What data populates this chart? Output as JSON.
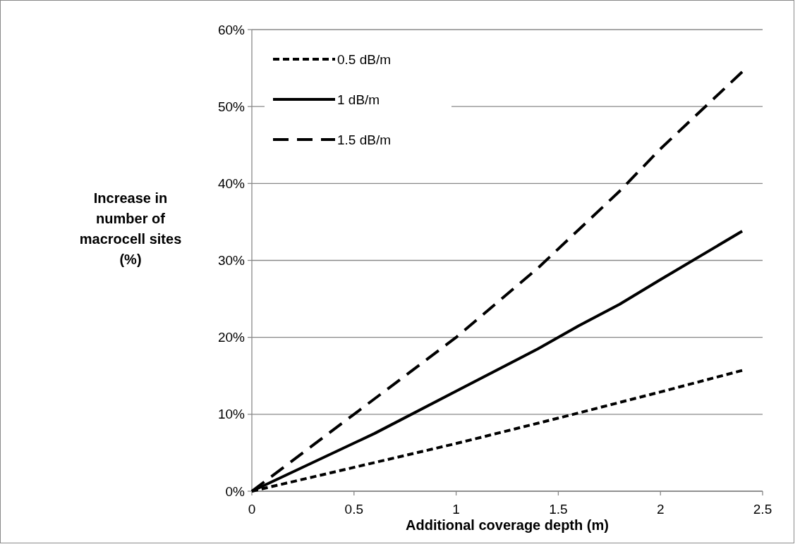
{
  "chart_data": {
    "type": "line",
    "xlabel": "Additional coverage depth (m)",
    "ylabel": "Increase in number of macrocell sites (%)",
    "xlim": [
      0,
      2.5
    ],
    "xticks": [
      0,
      0.5,
      1,
      1.5,
      2,
      2.5
    ],
    "ylim": [
      0,
      60
    ],
    "yticks": [
      {
        "value": 0,
        "label": "0%"
      },
      {
        "value": 10,
        "label": "10%"
      },
      {
        "value": 20,
        "label": "20%"
      },
      {
        "value": 30,
        "label": "30%"
      },
      {
        "value": 40,
        "label": "40%"
      },
      {
        "value": 50,
        "label": "50%"
      },
      {
        "value": 60,
        "label": "60%"
      }
    ],
    "grid": "y",
    "legend": "top left",
    "marker": "none",
    "series": [
      {
        "name": "0.5 dB/m",
        "color": "#000000",
        "line_style": "dotted",
        "x": [
          0,
          0.5,
          1,
          1.5,
          2,
          2.4
        ],
        "values": [
          0,
          3.1,
          6.2,
          9.5,
          12.9,
          15.7
        ]
      },
      {
        "name": "1 dB/m",
        "color": "#000000",
        "line_style": "solid",
        "x": [
          0,
          0.6,
          1,
          1.4,
          1.6,
          1.8,
          2,
          2.4
        ],
        "values": [
          0,
          7.5,
          13,
          18.5,
          21.5,
          24.3,
          27.5,
          33.8
        ]
      },
      {
        "name": "1.5 dB/m",
        "color": "#000000",
        "line_style": "dashed",
        "x": [
          0,
          0.5,
          1,
          1.4,
          1.8,
          2,
          2.4
        ],
        "values": [
          0,
          10,
          20,
          29,
          39,
          44.5,
          54.5
        ]
      }
    ]
  }
}
